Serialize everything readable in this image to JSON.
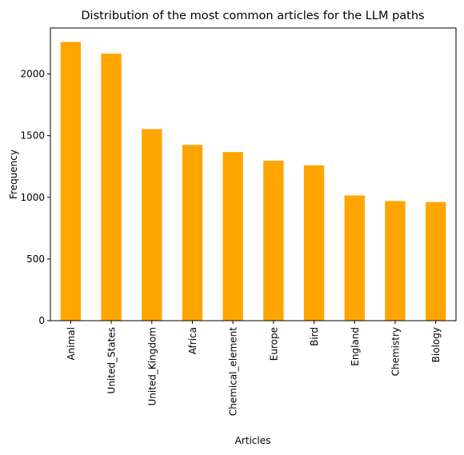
{
  "chart_data": {
    "type": "bar",
    "title": "Distribution of the most common articles for the LLM paths",
    "xlabel": "Articles",
    "ylabel": "Frequency",
    "categories": [
      "Animal",
      "United_States",
      "United_Kingdom",
      "Africa",
      "Chemical_element",
      "Europe",
      "Bird",
      "England",
      "Chemistry",
      "Biology"
    ],
    "values": [
      2260,
      2165,
      1553,
      1425,
      1367,
      1297,
      1260,
      1015,
      970,
      962
    ],
    "ylim": [
      0,
      2373
    ],
    "yticks": [
      0,
      500,
      1000,
      1500,
      2000
    ],
    "ytick_labels": [
      "0",
      "500",
      "1000",
      "1500",
      "2000"
    ],
    "bar_color": "#ffa500",
    "grid": false,
    "legend": "none"
  }
}
